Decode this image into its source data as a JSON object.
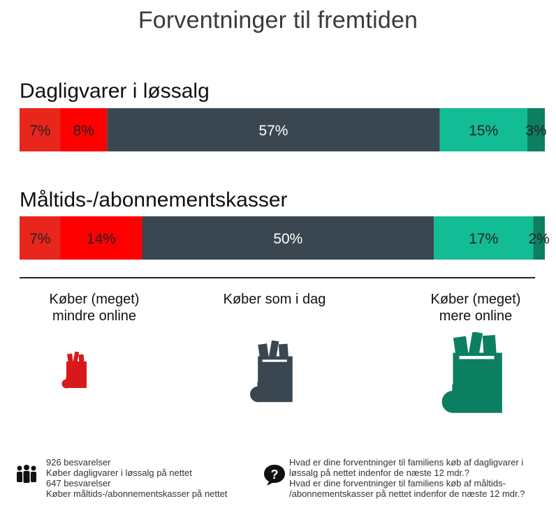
{
  "title": "Forventninger til fremtiden",
  "chart_data": {
    "type": "bar",
    "orientation": "horizontal-stacked-100",
    "categories": [
      "Dagligvarer i løssalg",
      "Måltids-/abonnementskasser"
    ],
    "series": [
      {
        "name": "Køber (meget) mindre online",
        "color": "#e8261c",
        "values": [
          7,
          7
        ],
        "labels": [
          "7%",
          "7%"
        ]
      },
      {
        "name": "Køber (meget) mindre online",
        "color": "#ff0000",
        "values": [
          8,
          14
        ],
        "labels": [
          "8%",
          "14%"
        ]
      },
      {
        "name": "Køber som i dag",
        "color": "#3a4750",
        "values": [
          57,
          50
        ],
        "labels": [
          "57%",
          "50%"
        ]
      },
      {
        "name": "Køber (meget) mere online",
        "color": "#12bc94",
        "values": [
          15,
          17
        ],
        "labels": [
          "15%",
          "17%"
        ]
      },
      {
        "name": "Køber (meget) mere online",
        "color": "#0c7f60",
        "values": [
          3,
          2
        ],
        "labels": [
          "3%",
          "2%"
        ]
      }
    ],
    "legend": [
      {
        "label_line1": "Køber (meget)",
        "label_line2": "mindre online",
        "color": "#e8261c",
        "icon": "grocery-bag-icon"
      },
      {
        "label_line1": "Køber som i dag",
        "label_line2": "",
        "color": "#3a4750",
        "icon": "grocery-bag-icon"
      },
      {
        "label_line1": "Køber (meget)",
        "label_line2": "mere online",
        "color": "#0c7f60",
        "icon": "grocery-bag-icon"
      }
    ],
    "legend_position": "bottom"
  },
  "footer": {
    "left_lines": [
      "926 besvarelser",
      "Køber dagligvarer i løssalg på nettet",
      "647 besvarelser",
      "Køber måltids-/abonnementskasser på nettet"
    ],
    "left_icon": "people-icon",
    "right_lines": [
      "Hvad er dine forventninger til familiens køb af dagligvarer i",
      "løssalg på nettet indenfor de næste 12 mdr.?",
      "Hvad er dine forventninger til familiens køb af måltids-",
      "/abonnementskasser på nettet indenfor de næste 12 mdr.?"
    ],
    "right_icon": "question-bubble-icon"
  }
}
